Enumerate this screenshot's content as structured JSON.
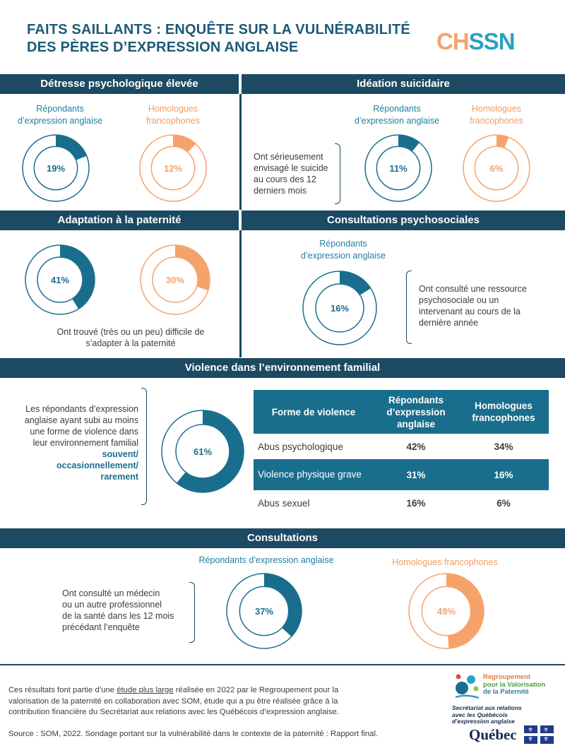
{
  "header": {
    "title_line1": "FAITS SAILLANTS : ENQUÊTE SUR LA VULNÉRABILITÉ",
    "title_line2": "DES PÈRES D’EXPRESSION ANGLAISE",
    "logo_part1": "CH",
    "logo_part2": "SSN"
  },
  "colors": {
    "english": "#1a6e8d",
    "french": "#f6a36b",
    "band": "#1c4a63"
  },
  "labels": {
    "eng_line1": "Répondants",
    "eng_line2": "d’expression anglaise",
    "fr_line1": "Homologues",
    "fr_line2": "francophones",
    "eng_single": "Répondants d’expression anglaise",
    "fr_single": "Homologues francophones"
  },
  "sections": {
    "distress": {
      "title": "Détresse psychologique élevée",
      "eng_value": 19,
      "fr_value": 12,
      "eng_text": "19%",
      "fr_text": "12%"
    },
    "suicide": {
      "title": "Idéation suicidaire",
      "desc": [
        "Ont sérieusement",
        "envisagé le suicide",
        "au cours des 12",
        "derniers mois"
      ],
      "eng_value": 11,
      "fr_value": 6,
      "eng_text": "11%",
      "fr_text": "6%"
    },
    "adaptation": {
      "title": "Adaptation à la paternité",
      "eng_value": 41,
      "fr_value": 30,
      "eng_text": "41%",
      "fr_text": "30%",
      "desc": [
        "Ont trouvé (très ou un peu) difficile de",
        "s’adapter à la paternité"
      ]
    },
    "psychosocial": {
      "title": "Consultations psychosociales",
      "eng_value": 16,
      "eng_text": "16%",
      "desc": [
        "Ont consulté une ressource",
        "psychosociale  ou un",
        "intervenant au cours de la",
        "dernière année"
      ]
    },
    "violence": {
      "title": "Violence dans l’environnement familial",
      "desc": [
        "Les répondants d’expression",
        "anglaise ayant subi au moins",
        "une forme de violence dans",
        "leur environnement familial"
      ],
      "desc_bold": [
        "souvent/",
        "occasionnellement/",
        "rarement"
      ],
      "eng_value": 61,
      "eng_text": "61%",
      "table": {
        "headers": [
          "Forme de violence",
          "Répondants d’expression anglaise",
          "Homologues francophones"
        ],
        "rows": [
          {
            "label": "Abus psychologique",
            "eng": "42%",
            "fr": "34%"
          },
          {
            "label": "Violence physique grave",
            "eng": "31%",
            "fr": "16%"
          },
          {
            "label": "Abus sexuel",
            "eng": "16%",
            "fr": "6%"
          }
        ]
      }
    },
    "consultations": {
      "title": "Consultations",
      "desc": [
        "Ont consulté un médecin",
        "ou un autre professionnel",
        "de la santé dans les 12 mois",
        "précédant l’enquête"
      ],
      "eng_value": 37,
      "fr_value": 49,
      "eng_text": "37%",
      "fr_text": "49%"
    }
  },
  "footer": {
    "p1_before": "Ces résultats font partie d’une ",
    "p1_link": "étude plus large",
    "p1_after": " réalisée en 2022 par le Regroupement pour la",
    "p1_line2": "valorisation de la paternité en collaboration avec SOM, étude qui a pu être réalisée grâce à la",
    "p1_line3": "contribution financière du Secrétariat aux relations avec les Québécois d’expression anglaise.",
    "source": "Source : SOM, 2022. Sondage portant sur la vulnérabilité dans le contexte de la paternité : Rapport final.",
    "rvp_line1": "Regroupement",
    "rvp_line2": "pour la Valorisation",
    "rvp_line3": "de la Paternité",
    "sec_line1": "Secrétariat aux relations",
    "sec_line2": "avec les Québécois",
    "sec_line3": "d’expression anglaise",
    "quebec": "Québec"
  }
}
